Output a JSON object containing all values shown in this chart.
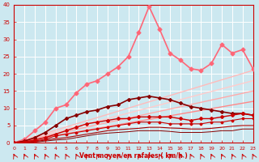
{
  "background_color": "#cce8f0",
  "grid_color": "#ffffff",
  "xlabel": "Vent moyen/en rafales ( km/h )",
  "xlabel_color": "#cc0000",
  "tick_color": "#cc0000",
  "xlim": [
    0,
    23
  ],
  "ylim": [
    0,
    40
  ],
  "yticks": [
    0,
    5,
    10,
    15,
    20,
    25,
    30,
    35,
    40
  ],
  "xticks": [
    0,
    1,
    2,
    3,
    4,
    5,
    6,
    7,
    8,
    9,
    10,
    11,
    12,
    13,
    14,
    15,
    16,
    17,
    18,
    19,
    20,
    21,
    22,
    23
  ],
  "x": [
    0,
    1,
    2,
    3,
    4,
    5,
    6,
    7,
    8,
    9,
    10,
    11,
    12,
    13,
    14,
    15,
    16,
    17,
    18,
    19,
    20,
    21,
    22,
    23
  ],
  "lines": [
    {
      "y": [
        0,
        0.91,
        1.83,
        2.74,
        3.65,
        4.57,
        5.48,
        6.39,
        7.3,
        8.22,
        9.13,
        10.04,
        10.96,
        11.87,
        12.78,
        13.7,
        14.61,
        15.52,
        16.43,
        17.35,
        18.26,
        19.17,
        20.09,
        21.0
      ],
      "color": "#ffbbbb",
      "lw": 1.0,
      "marker": null,
      "ms": 0,
      "zorder": 2,
      "linestyle": "-"
    },
    {
      "y": [
        0,
        0.78,
        1.57,
        2.35,
        3.13,
        3.91,
        4.7,
        5.48,
        6.26,
        7.04,
        7.83,
        8.61,
        9.39,
        10.17,
        10.96,
        11.74,
        12.52,
        13.3,
        14.09,
        14.87,
        15.65,
        16.43,
        17.22,
        18.0
      ],
      "color": "#ffcccc",
      "lw": 1.0,
      "marker": null,
      "ms": 0,
      "zorder": 2,
      "linestyle": "-"
    },
    {
      "y": [
        0,
        0.65,
        1.3,
        1.96,
        2.61,
        3.26,
        3.91,
        4.57,
        5.22,
        5.87,
        6.52,
        7.17,
        7.83,
        8.48,
        9.13,
        9.78,
        10.43,
        11.09,
        11.74,
        12.39,
        13.04,
        13.7,
        14.35,
        15.0
      ],
      "color": "#ffaaaa",
      "lw": 1.0,
      "marker": null,
      "ms": 0,
      "zorder": 2,
      "linestyle": "-"
    },
    {
      "y": [
        0,
        0.52,
        1.04,
        1.57,
        2.09,
        2.61,
        3.13,
        3.65,
        4.17,
        4.7,
        5.22,
        5.74,
        6.26,
        6.78,
        7.3,
        7.83,
        8.35,
        8.87,
        9.39,
        9.91,
        10.43,
        10.96,
        11.48,
        12.0
      ],
      "color": "#ff8888",
      "lw": 1.0,
      "marker": null,
      "ms": 0,
      "zorder": 2,
      "linestyle": "-"
    },
    {
      "y": [
        0,
        1.0,
        3.5,
        6.0,
        10.0,
        11.0,
        14.5,
        17.0,
        18.0,
        20.0,
        22.0,
        25.0,
        32.0,
        39.5,
        33.0,
        26.0,
        24.0,
        21.5,
        21.0,
        23.0,
        28.5,
        26.0,
        27.0,
        21.5
      ],
      "color": "#ff6677",
      "lw": 1.2,
      "marker": "D",
      "ms": 2.5,
      "zorder": 6,
      "linestyle": "-"
    },
    {
      "y": [
        0,
        0.5,
        1.5,
        3.0,
        5.0,
        7.0,
        8.0,
        9.0,
        9.5,
        10.5,
        11.0,
        12.5,
        13.0,
        13.5,
        13.0,
        12.5,
        11.5,
        10.5,
        10.0,
        9.5,
        9.0,
        8.5,
        8.5,
        8.0
      ],
      "color": "#880000",
      "lw": 1.2,
      "marker": "D",
      "ms": 2.0,
      "zorder": 7,
      "linestyle": "-"
    },
    {
      "y": [
        0,
        0.3,
        0.8,
        1.5,
        2.5,
        3.5,
        4.5,
        5.5,
        6.0,
        6.5,
        7.0,
        7.0,
        7.5,
        7.5,
        7.5,
        7.5,
        7.0,
        6.5,
        7.0,
        7.0,
        7.5,
        8.0,
        8.5,
        8.0
      ],
      "color": "#cc0000",
      "lw": 1.0,
      "marker": "D",
      "ms": 2.0,
      "zorder": 7,
      "linestyle": "-"
    },
    {
      "y": [
        0,
        0.2,
        0.5,
        1.0,
        2.0,
        2.5,
        3.0,
        3.5,
        4.0,
        4.5,
        5.0,
        5.5,
        6.0,
        6.0,
        6.0,
        5.5,
        5.5,
        5.5,
        5.5,
        6.0,
        6.0,
        6.5,
        7.0,
        7.0
      ],
      "color": "#cc0000",
      "lw": 0.8,
      "marker": "D",
      "ms": 1.5,
      "zorder": 6,
      "linestyle": "-"
    },
    {
      "y": [
        0,
        0.1,
        0.3,
        0.8,
        1.2,
        1.5,
        2.0,
        2.5,
        3.0,
        3.5,
        3.8,
        4.0,
        4.2,
        4.5,
        4.5,
        4.3,
        4.2,
        4.0,
        4.0,
        4.2,
        4.5,
        4.8,
        5.0,
        5.0
      ],
      "color": "#aa0000",
      "lw": 0.8,
      "marker": null,
      "ms": 0,
      "zorder": 5,
      "linestyle": "-"
    },
    {
      "y": [
        0,
        0.05,
        0.2,
        0.5,
        0.8,
        1.0,
        1.5,
        2.0,
        2.5,
        2.8,
        3.0,
        3.2,
        3.5,
        3.5,
        3.5,
        3.3,
        3.0,
        3.0,
        3.0,
        3.2,
        3.5,
        3.5,
        4.0,
        4.0
      ],
      "color": "#880000",
      "lw": 0.7,
      "marker": null,
      "ms": 0,
      "zorder": 4,
      "linestyle": "-"
    }
  ]
}
